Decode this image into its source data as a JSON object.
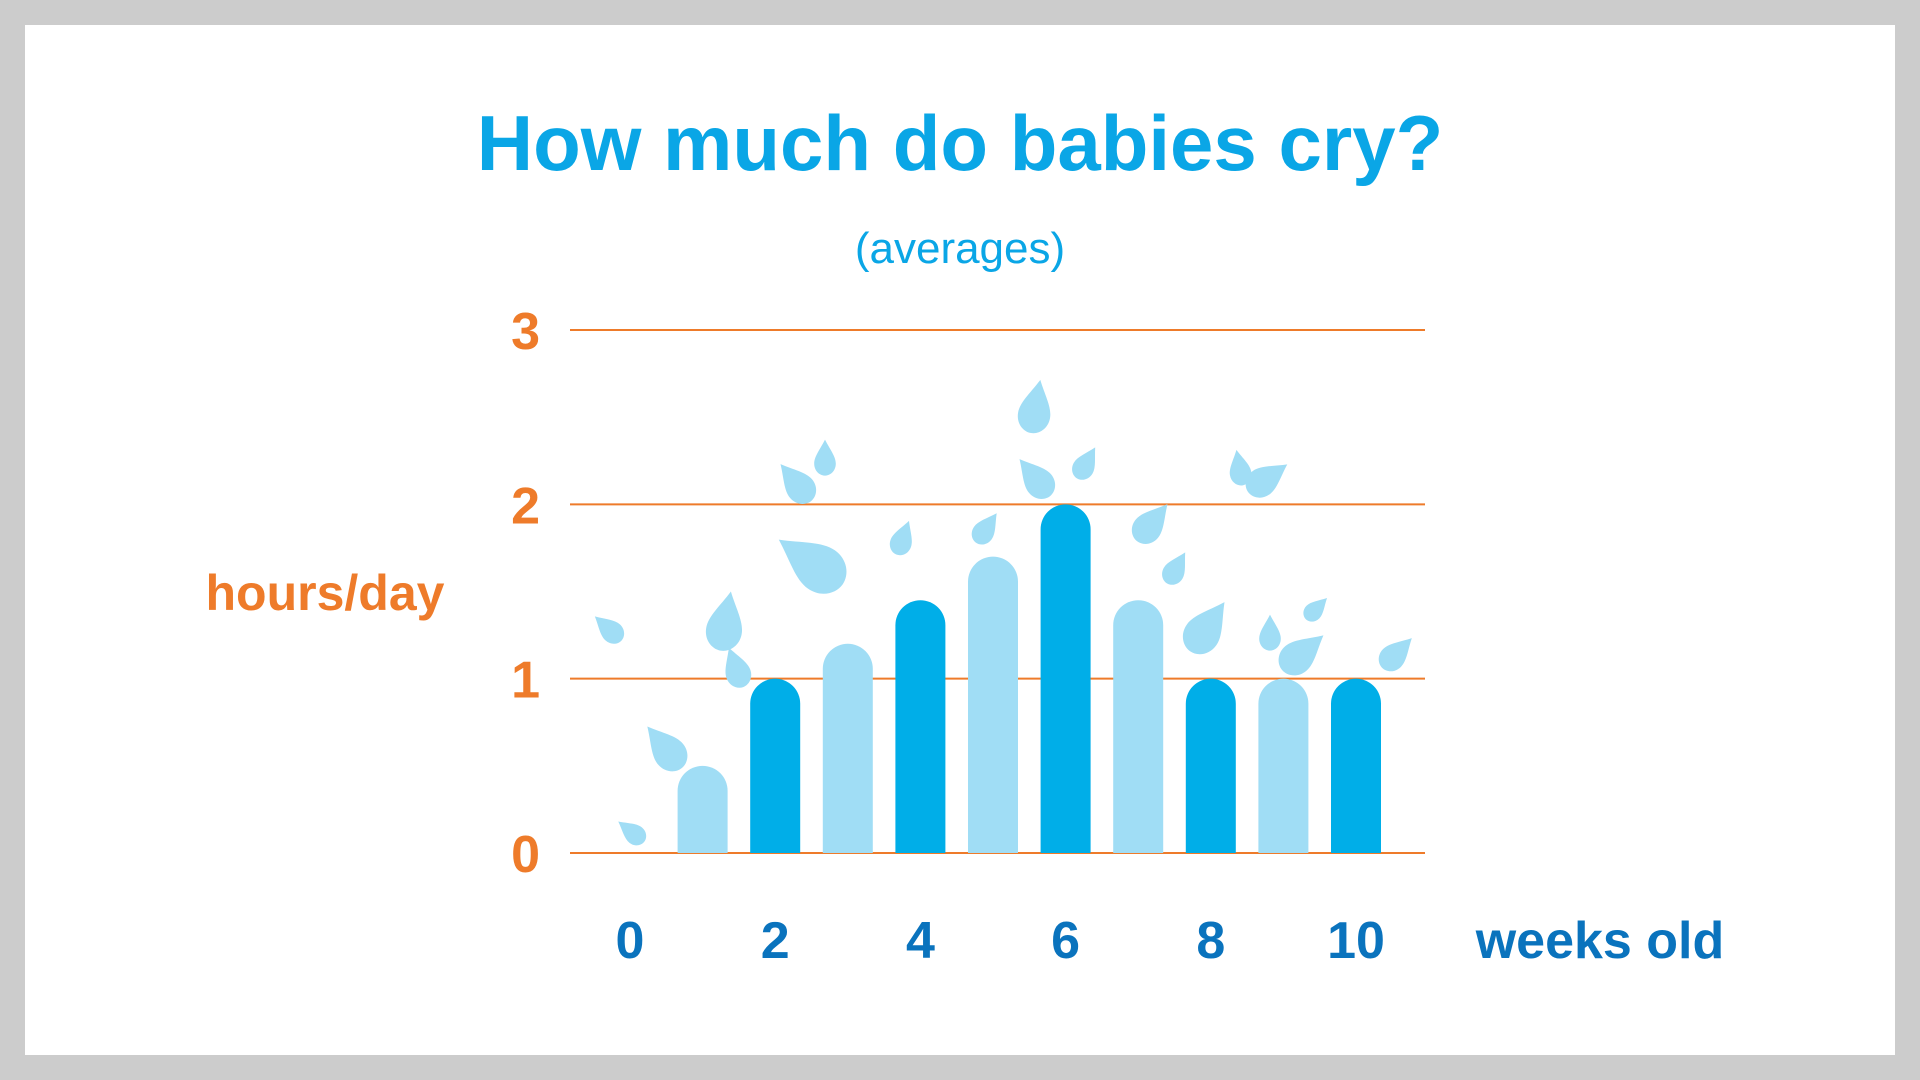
{
  "chart_data": {
    "type": "bar",
    "title": "How much do babies cry?",
    "subtitle": "(averages)",
    "ylabel": "hours/day",
    "xlabel": "weeks old",
    "ylim": [
      0,
      3
    ],
    "yticks": [
      0,
      1,
      2,
      3
    ],
    "xlim": [
      0,
      10
    ],
    "xticks": [
      0,
      2,
      4,
      6,
      8,
      10
    ],
    "grid": true,
    "x": [
      1,
      2,
      3,
      4,
      5,
      6,
      7,
      8,
      9,
      10
    ],
    "values": [
      0.5,
      1,
      1.2,
      1.45,
      1.7,
      2.0,
      1.45,
      1.0,
      1.0,
      1.0
    ],
    "colors": {
      "light_bar": "#a0ddf5",
      "dark_bar": "#00aee8",
      "title": "#0aa6e6",
      "axis_orange": "#ee7b2a",
      "x_axis_blue": "#0a73bd",
      "drop": "#a0ddf5",
      "background": "#ffffff",
      "frame": "#cccccc"
    },
    "decorations": "tear-drop splashes above bars"
  }
}
